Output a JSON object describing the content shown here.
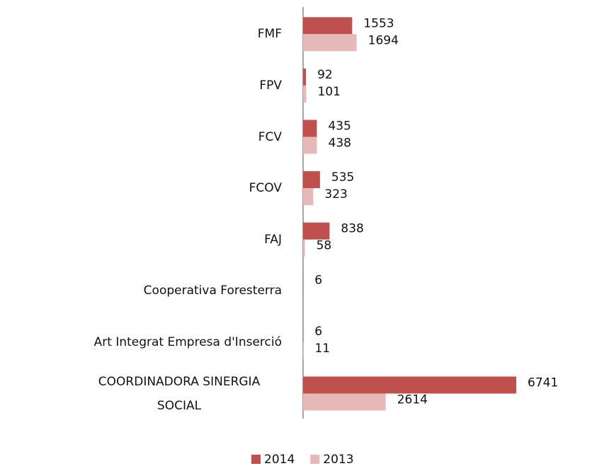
{
  "chart_data": {
    "type": "hbar",
    "categories": [
      "FMF",
      "FPV",
      "FCV",
      "FCOV",
      "FAJ",
      "Cooperativa Foresterra",
      "Art Integrat Empresa d'Inserció",
      "COORDINADORA SINERGIA SOCIAL"
    ],
    "series": [
      {
        "name": "2014",
        "color": "#c0504d",
        "values": [
          1553,
          92,
          435,
          535,
          838,
          6,
          6,
          6741
        ]
      },
      {
        "name": "2013",
        "color": "#e6b9b8",
        "values": [
          1694,
          101,
          438,
          323,
          58,
          null,
          11,
          2614
        ]
      }
    ],
    "legend": "bottom"
  }
}
